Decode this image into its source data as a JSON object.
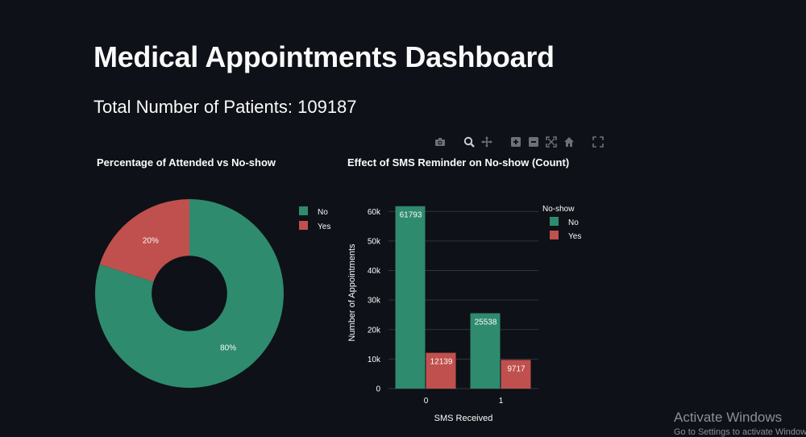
{
  "page": {
    "title": "Medical Appointments Dashboard",
    "subtitle": "Total Number of Patients: 109187"
  },
  "modebar": {
    "icons": [
      "camera-icon",
      "zoom-icon",
      "pan-icon",
      "zoom-in-icon",
      "zoom-out-icon",
      "autoscale-icon",
      "reset-axes-icon",
      "fullscreen-icon"
    ]
  },
  "colors": {
    "no": "#2e8b6e",
    "yes": "#c0504d",
    "background": "#0e1117",
    "grid": "#30353d",
    "text": "#fafafa"
  },
  "watermark": {
    "title": "Activate Windows",
    "sub": "Go to Settings to activate Windows."
  },
  "chart_data": [
    {
      "type": "pie",
      "title": "Percentage of Attended vs No-show",
      "hole": 0.4,
      "labels": [
        "No",
        "Yes"
      ],
      "values": [
        80,
        20
      ],
      "text_labels": [
        "80%",
        "20%"
      ],
      "legend": {
        "entries": [
          "No",
          "Yes"
        ],
        "placement": "right"
      }
    },
    {
      "type": "bar",
      "title": "Effect of SMS Reminder on No-show (Count)",
      "xlabel": "SMS Received",
      "ylabel": "Number of Appointments",
      "categories": [
        "0",
        "1"
      ],
      "ylim": [
        0,
        65000
      ],
      "yticks": [
        0,
        10000,
        20000,
        30000,
        40000,
        50000,
        60000
      ],
      "ytick_labels": [
        "0",
        "10k",
        "20k",
        "30k",
        "40k",
        "50k",
        "60k"
      ],
      "grid": true,
      "legend": {
        "title": "No-show",
        "placement": "right"
      },
      "series": [
        {
          "name": "No",
          "values": [
            61793,
            25538
          ]
        },
        {
          "name": "Yes",
          "values": [
            12139,
            9717
          ]
        }
      ]
    }
  ]
}
